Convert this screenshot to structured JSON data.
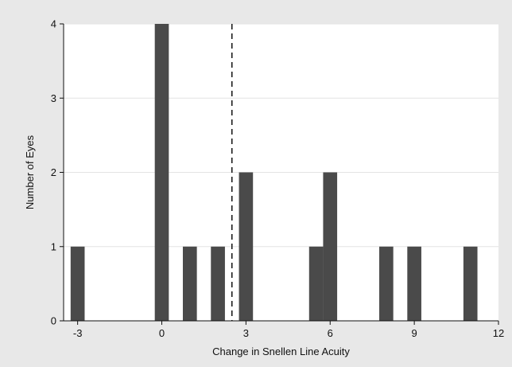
{
  "chart_data": {
    "type": "bar",
    "xlabel": "Change in Snellen Line Acuity",
    "ylabel": "Number of Eyes",
    "xlim": [
      -3.5,
      12
    ],
    "ylim": [
      0,
      4
    ],
    "x_ticks": [
      -3,
      0,
      3,
      6,
      9,
      12
    ],
    "y_ticks": [
      0,
      1,
      2,
      3,
      4
    ],
    "grid": "horizontal",
    "bar_width": 0.5,
    "reference_line": {
      "x": 2.5,
      "style": "dashed"
    },
    "bar_color": "#4a4a4a",
    "series": [
      {
        "x": [
          -3,
          0,
          1,
          2,
          3,
          5.5,
          6,
          8,
          9,
          11
        ],
        "values": [
          1,
          4,
          1,
          1,
          2,
          1,
          2,
          1,
          1,
          1
        ]
      }
    ]
  }
}
